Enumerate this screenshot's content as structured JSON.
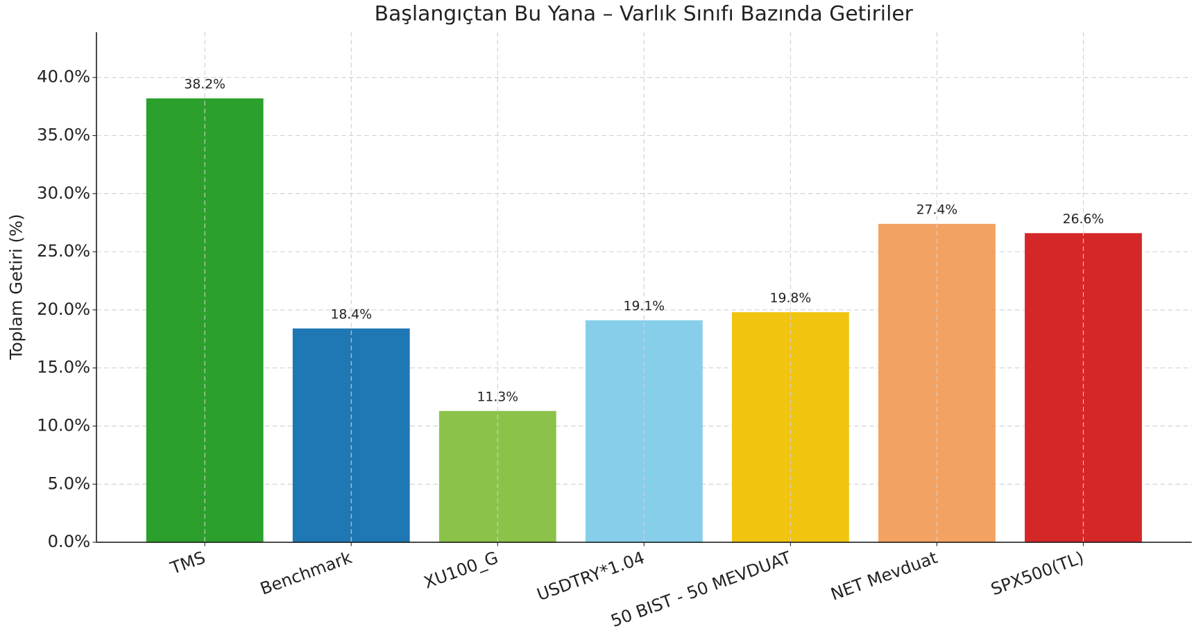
{
  "chart_data": {
    "type": "bar",
    "title": "Başlangıçtan Bu Yana – Varlık Sınıfı Bazında Getiriler",
    "y_label": "Toplam Getiri (%)",
    "categories": [
      "TMS",
      "Benchmark",
      "XU100_G",
      "USDTRY*1.04",
      "50 BIST - 50 MEVDUAT",
      "NET Mevduat",
      "SPX500(TL)"
    ],
    "values": [
      38.2,
      18.4,
      11.3,
      19.1,
      19.8,
      27.4,
      26.6
    ],
    "value_labels": [
      "38.2%",
      "18.4%",
      "11.3%",
      "19.1%",
      "19.8%",
      "27.4%",
      "26.6%"
    ],
    "colors": [
      "#2ca02c",
      "#1f77b4",
      "#8bc34a",
      "#87ceeb",
      "#f1c40f",
      "#f4a261",
      "#d62728"
    ],
    "ylim": [
      0,
      43.9
    ],
    "yticks": [
      {
        "value": 0,
        "label": "0.0%"
      },
      {
        "value": 5,
        "label": "5.0%"
      },
      {
        "value": 10,
        "label": "10.0%"
      },
      {
        "value": 15,
        "label": "15.0%"
      },
      {
        "value": 20,
        "label": "20.0%"
      },
      {
        "value": 25,
        "label": "25.0%"
      },
      {
        "value": 30,
        "label": "30.0%"
      },
      {
        "value": 35,
        "label": "35.0%"
      },
      {
        "value": 40,
        "label": "40.0%"
      }
    ],
    "grid": true
  }
}
